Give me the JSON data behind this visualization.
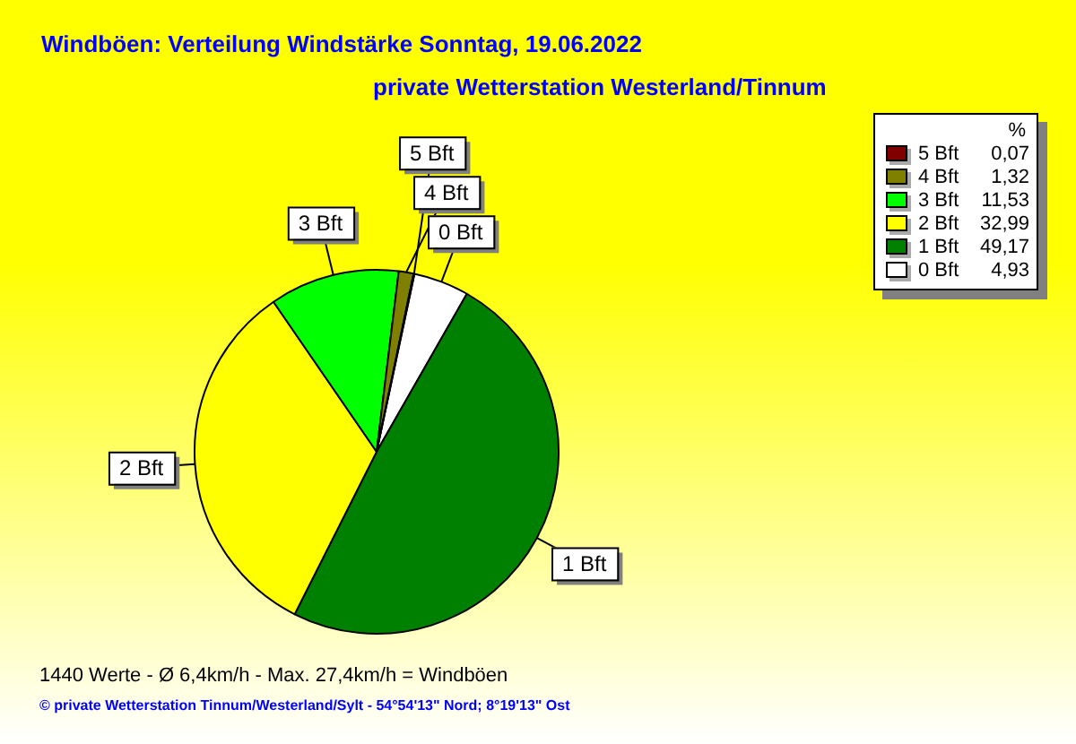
{
  "chart_data": {
    "type": "pie",
    "title": "Windböen: Verteilung Windstärke  Sonntag, 19.06.2022",
    "subtitle": "private Wetterstation Westerland/Tinnum",
    "categories": [
      "0 Bft",
      "1 Bft",
      "2 Bft",
      "3 Bft",
      "4 Bft",
      "5 Bft"
    ],
    "values": [
      4.93,
      49.17,
      32.99,
      11.53,
      1.32,
      0.07
    ],
    "value_labels": [
      "4,93",
      "49,17",
      "32,99",
      "11,53",
      "1,32",
      "0,07"
    ],
    "colors": [
      "#ffffff",
      "#008000",
      "#ffff00",
      "#00ff00",
      "#808000",
      "#800000"
    ],
    "legend": "top right",
    "legend_title": "%",
    "annotations": [
      "1440 Werte   -   Ø 6,4km/h  -  Max. 27,4km/h = Windböen",
      "© private Wetterstation Tinnum/Westerland/Sylt   -   54°54'13\" Nord; 8°19'13\" Ost"
    ]
  }
}
